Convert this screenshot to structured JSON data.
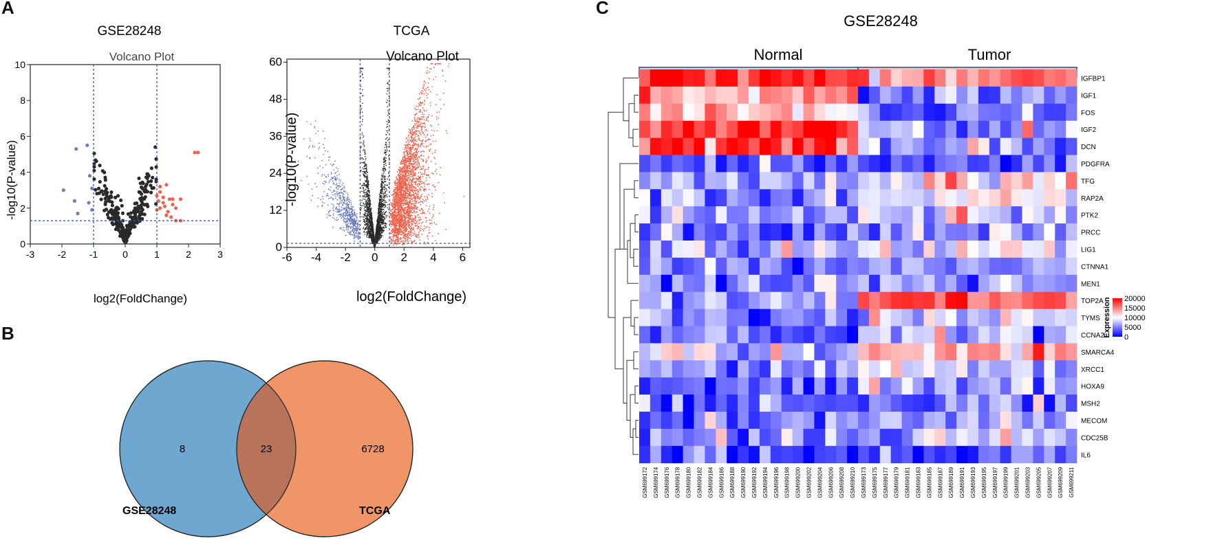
{
  "panels": {
    "a": "A",
    "b": "B",
    "c": "C"
  },
  "colors": {
    "down": "#6f7dc0",
    "up": "#f1604b",
    "ns": "#2a2a2a",
    "threshold_line": "#3f55b0",
    "venn_left": "#6ea7cf",
    "venn_right": "#ef9567",
    "venn_overlap": "#b8745b",
    "normal_bar": "#d9d9d9",
    "tumor_bar": "#f5c2bd",
    "bar_border": "#2e4a7a",
    "heat_low": "#0000ff",
    "heat_mid": "#ffffff",
    "heat_high": "#ff0000"
  },
  "chart_data": [
    {
      "type": "scatter",
      "id": "volcano_gse",
      "dataset_title": "GSE28248",
      "title": "Volcano Plot",
      "xlabel": "log2(FoldChange)",
      "ylabel": "-log10(P-value)",
      "xlim": [
        -3,
        3
      ],
      "ylim": [
        0,
        10
      ],
      "xticks": [
        -3,
        -2,
        -1,
        0,
        1,
        2,
        3
      ],
      "yticks": [
        0,
        2,
        4,
        6,
        8,
        10
      ],
      "thresholds": {
        "fc": [
          -1,
          1
        ],
        "p": 1.3
      },
      "down_points": [
        [
          -1.95,
          3.0
        ],
        [
          -1.55,
          5.3
        ],
        [
          -1.6,
          2.4
        ],
        [
          -1.5,
          1.7
        ],
        [
          -1.2,
          5.5
        ],
        [
          -1.12,
          3.8
        ],
        [
          -1.05,
          3.1
        ],
        [
          -1.15,
          2.3
        ],
        [
          -1.05,
          1.9
        ]
      ],
      "up_points": [
        [
          2.2,
          5.1
        ],
        [
          2.3,
          5.1
        ],
        [
          1.1,
          3.2
        ],
        [
          1.3,
          3.3
        ],
        [
          1.1,
          2.9
        ],
        [
          1.0,
          2.7
        ],
        [
          1.2,
          2.6
        ],
        [
          1.4,
          2.5
        ],
        [
          1.05,
          2.4
        ],
        [
          1.2,
          2.3
        ],
        [
          1.5,
          2.2
        ],
        [
          1.6,
          2.0
        ],
        [
          1.75,
          2.5
        ],
        [
          1.45,
          1.5
        ],
        [
          1.6,
          1.3
        ],
        [
          1.75,
          1.3
        ],
        [
          1.1,
          2.0
        ],
        [
          1.25,
          2.1
        ],
        [
          1.0,
          1.9
        ],
        [
          1.3,
          1.6
        ],
        [
          1.5,
          2.5
        ],
        [
          1.35,
          1.8
        ]
      ]
    },
    {
      "type": "scatter",
      "id": "volcano_tcga",
      "dataset_title": "TCGA",
      "title": "Volcano Plot",
      "xlabel": "log2(FoldChange)",
      "ylabel": "-log10(P-value)",
      "xlim": [
        -6,
        6.5
      ],
      "ylim": [
        0,
        61
      ],
      "xticks": [
        -6,
        -4,
        -2,
        0,
        2,
        4,
        6
      ],
      "yticks": [
        0,
        12,
        24,
        36,
        48,
        60
      ],
      "thresholds": {
        "fc": [
          -1,
          1
        ],
        "p": 1.3
      }
    },
    {
      "type": "venn",
      "id": "venn",
      "sets": [
        {
          "name": "GSE28248",
          "only": 8
        },
        {
          "name": "TCGA",
          "only": 6728
        }
      ],
      "overlap": 23
    },
    {
      "type": "heatmap",
      "id": "heatmap",
      "title": "GSE28248",
      "groups": [
        {
          "name": "Normal",
          "count": 20
        },
        {
          "name": "Tumor",
          "count": 20
        }
      ],
      "legend_title": "Expression",
      "legend_ticks": [
        0,
        5000,
        10000,
        15000,
        20000
      ],
      "value_range": [
        0,
        20000
      ],
      "genes": [
        "IGFBP1",
        "IGF1",
        "FOS",
        "IGF2",
        "DCN",
        "PDGFRA",
        "TFG",
        "RAP2A",
        "PTK2",
        "PRCC",
        "LIG1",
        "CTNNA1",
        "MEN1",
        "TOP2A",
        "TYMS",
        "CCNA2",
        "SMARCA4",
        "XRCC1",
        "HOXA9",
        "MSH2",
        "MECOM",
        "CDC25B",
        "IL6"
      ],
      "samples": [
        "GSM699172",
        "GSM699174",
        "GSM699176",
        "GSM699178",
        "GSM699180",
        "GSM699182",
        "GSM699184",
        "GSM699186",
        "GSM699188",
        "GSM699190",
        "GSM699192",
        "GSM699194",
        "GSM699196",
        "GSM699198",
        "GSM699200",
        "GSM699202",
        "GSM699204",
        "GSM699206",
        "GSM699208",
        "GSM699210",
        "GSM699173",
        "GSM699175",
        "GSM699177",
        "GSM699179",
        "GSM699181",
        "GSM699183",
        "GSM699185",
        "GSM699187",
        "GSM699189",
        "GSM699191",
        "GSM699193",
        "GSM699195",
        "GSM699197",
        "GSM699199",
        "GSM699201",
        "GSM699203",
        "GSM699205",
        "GSM699207",
        "GSM699209",
        "GSM699211"
      ],
      "normal_mean": [
        19000,
        13500,
        11500,
        18500,
        17500,
        3500,
        6500,
        5500,
        5500,
        5000,
        6000,
        5000,
        5000,
        6000,
        4500,
        4000,
        8000,
        5500,
        4000,
        3500,
        5000,
        5000,
        3500
      ],
      "tumor_mean": [
        15000,
        4500,
        4000,
        6500,
        6500,
        3000,
        10000,
        9000,
        8000,
        6500,
        9000,
        6500,
        6000,
        16500,
        9000,
        8000,
        13000,
        7500,
        6000,
        5000,
        6000,
        6500,
        4000
      ],
      "dendrogram_order_note": "rows clustered"
    }
  ]
}
